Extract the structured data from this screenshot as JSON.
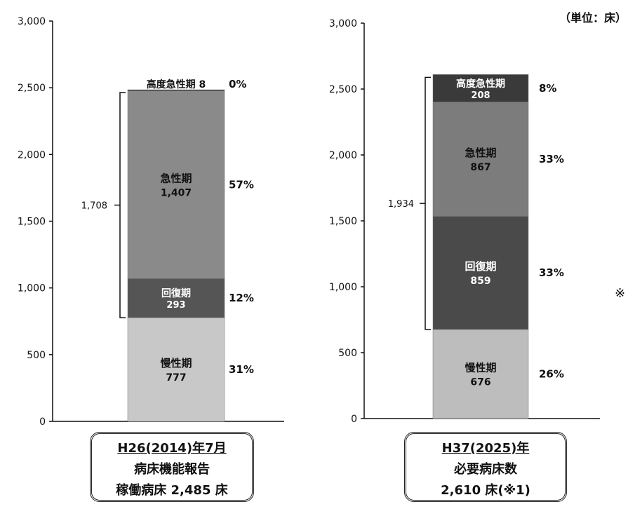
{
  "unit_label": "（単位：床）",
  "side_note": "※",
  "captions": {
    "left": {
      "line1": "H26(2014)年7月",
      "line2": "病床機能報告",
      "line3": "稼働病床 2,485 床"
    },
    "right": {
      "line1": "H37(2025)年",
      "line2": "必要病床数",
      "line3": "2,610 床(※1)"
    }
  },
  "chart_data": [
    {
      "type": "bar",
      "stacked": true,
      "categories": [
        "H26(2014)年7月"
      ],
      "ylim": [
        0,
        3000
      ],
      "yticks": [
        "0",
        "500",
        "1,000",
        "1,500",
        "2,000",
        "2,500",
        "3,000"
      ],
      "segments": [
        {
          "name": "慢性期",
          "value": 777,
          "value_label": "777",
          "percent": "31%",
          "color": "#c8c8c8"
        },
        {
          "name": "回復期",
          "value": 293,
          "value_label": "293",
          "percent": "12%",
          "color": "#555555"
        },
        {
          "name": "急性期",
          "value": 1407,
          "value_label": "1,407",
          "percent": "57%",
          "color": "#8a8a8a"
        },
        {
          "name": "高度急性期",
          "value": 8,
          "value_label": "8",
          "percent": "0%",
          "color": "#333333"
        }
      ],
      "bracket_label": "1,708"
    },
    {
      "type": "bar",
      "stacked": true,
      "categories": [
        "H37(2025)年"
      ],
      "ylim": [
        0,
        3000
      ],
      "yticks": [
        "0",
        "500",
        "1,000",
        "1,500",
        "2,000",
        "2,500",
        "3,000"
      ],
      "segments": [
        {
          "name": "慢性期",
          "value": 676,
          "value_label": "676",
          "percent": "26%",
          "color": "#bdbdbd"
        },
        {
          "name": "回復期",
          "value": 859,
          "value_label": "859",
          "percent": "33%",
          "color": "#4a4a4a"
        },
        {
          "name": "急性期",
          "value": 867,
          "value_label": "867",
          "percent": "33%",
          "color": "#7c7c7c"
        },
        {
          "name": "高度急性期",
          "value": 208,
          "value_label": "208",
          "percent": "8%",
          "color": "#3a3a3a"
        }
      ],
      "bracket_label": "1,934"
    }
  ]
}
